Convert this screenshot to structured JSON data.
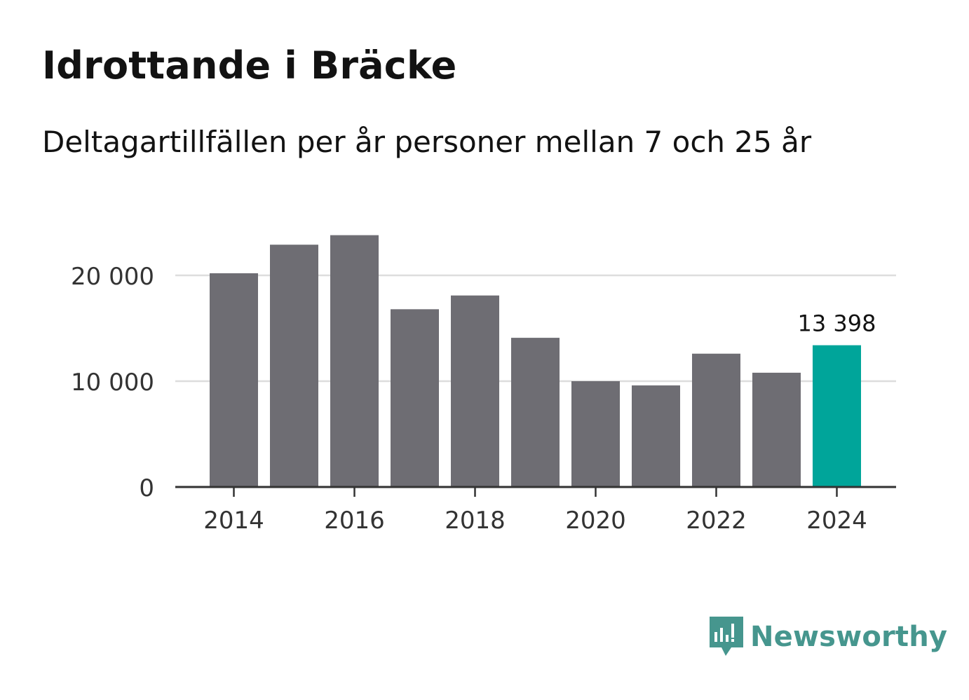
{
  "title": "Idrottande i Bräcke",
  "subtitle": "Deltagartillfällen per år personer mellan 7 och 25 år",
  "brand": {
    "name": "Newsworthy",
    "icon": "newsworthy-logo-icon"
  },
  "colors": {
    "bar": "#6e6d73",
    "highlight": "#00a59a",
    "grid": "#dddddd",
    "axis": "#333333",
    "brand": "#46968e"
  },
  "chart_data": {
    "type": "bar",
    "categories": [
      "2014",
      "2015",
      "2016",
      "2017",
      "2018",
      "2019",
      "2020",
      "2021",
      "2022",
      "2023",
      "2024"
    ],
    "series": [
      {
        "name": "Deltagartillfällen",
        "values": [
          20200,
          22900,
          23800,
          16800,
          18100,
          14100,
          10000,
          9600,
          12600,
          10800,
          13398
        ]
      }
    ],
    "highlight_index": 10,
    "data_labels": [
      {
        "index": 10,
        "text": "13 398"
      }
    ],
    "xtick_labels": [
      "2014",
      "2016",
      "2018",
      "2020",
      "2022",
      "2024"
    ],
    "yticks": [
      0,
      10000,
      20000
    ],
    "ytick_labels": [
      "0",
      "10 000",
      "20 000"
    ],
    "ylim": [
      0,
      24000
    ],
    "grid": true,
    "xlabel": "",
    "ylabel": ""
  }
}
